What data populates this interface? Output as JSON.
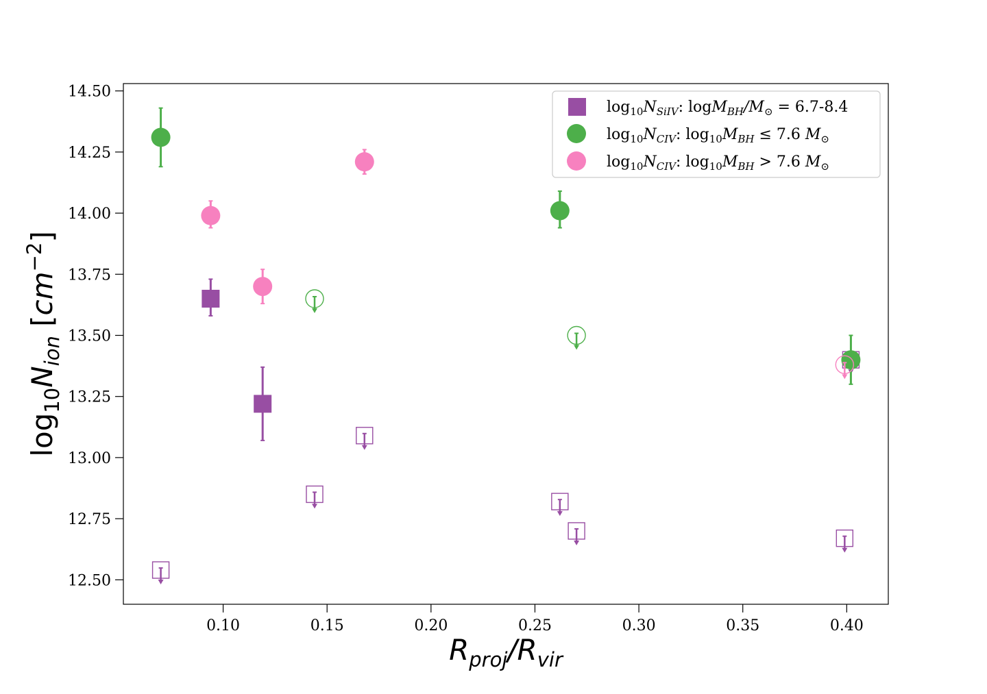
{
  "colors": {
    "siiv": "#984ea3",
    "civ_low": "#4daf4a",
    "civ_high": "#f781bf",
    "axes": "#000000",
    "legend_border": "#cccccc"
  },
  "chart_data": {
    "type": "scatter",
    "xlabel": "R_proj/R_vir",
    "ylabel": "log10 N_ion [cm^-2]",
    "xlim": [
      0.052,
      0.42
    ],
    "ylim": [
      12.4,
      14.53
    ],
    "x_ticks": [
      "0.10",
      "0.15",
      "0.20",
      "0.25",
      "0.30",
      "0.35",
      "0.40"
    ],
    "y_ticks": [
      "12.50",
      "12.75",
      "13.00",
      "13.25",
      "13.50",
      "13.75",
      "14.00",
      "14.25",
      "14.50"
    ],
    "grid": false,
    "legend_position": "top-right",
    "series": [
      {
        "name": "log10N_SiIV: logM_BH/M_sun = 6.7-8.4",
        "marker": "square",
        "color_key": "siiv",
        "detections": [
          {
            "x": 0.094,
            "y": 13.65,
            "err_low": 0.07,
            "err_high": 0.08
          },
          {
            "x": 0.119,
            "y": 13.22,
            "err_low": 0.15,
            "err_high": 0.15
          }
        ],
        "upper_limits": [
          {
            "x": 0.07,
            "y": 12.54
          },
          {
            "x": 0.144,
            "y": 12.85
          },
          {
            "x": 0.168,
            "y": 13.09
          },
          {
            "x": 0.262,
            "y": 12.82
          },
          {
            "x": 0.27,
            "y": 12.7
          },
          {
            "x": 0.399,
            "y": 12.67
          },
          {
            "x": 0.402,
            "y": 13.4
          }
        ]
      },
      {
        "name": "log10N_CIV: log10M_BH ≤ 7.6 M_sun",
        "marker": "circle",
        "color_key": "civ_low",
        "detections": [
          {
            "x": 0.07,
            "y": 14.31,
            "err_low": 0.12,
            "err_high": 0.12
          },
          {
            "x": 0.262,
            "y": 14.01,
            "err_low": 0.07,
            "err_high": 0.08
          },
          {
            "x": 0.402,
            "y": 13.4,
            "err_low": 0.1,
            "err_high": 0.1
          }
        ],
        "upper_limits": [
          {
            "x": 0.144,
            "y": 13.65
          },
          {
            "x": 0.27,
            "y": 13.5
          }
        ]
      },
      {
        "name": "log10N_CIV: log10M_BH > 7.6 M_sun",
        "marker": "circle",
        "color_key": "civ_high",
        "detections": [
          {
            "x": 0.094,
            "y": 13.99,
            "err_low": 0.05,
            "err_high": 0.06
          },
          {
            "x": 0.119,
            "y": 13.7,
            "err_low": 0.07,
            "err_high": 0.07
          },
          {
            "x": 0.168,
            "y": 14.21,
            "err_low": 0.05,
            "err_high": 0.05
          }
        ],
        "upper_limits": [
          {
            "x": 0.399,
            "y": 13.38
          }
        ]
      }
    ]
  }
}
